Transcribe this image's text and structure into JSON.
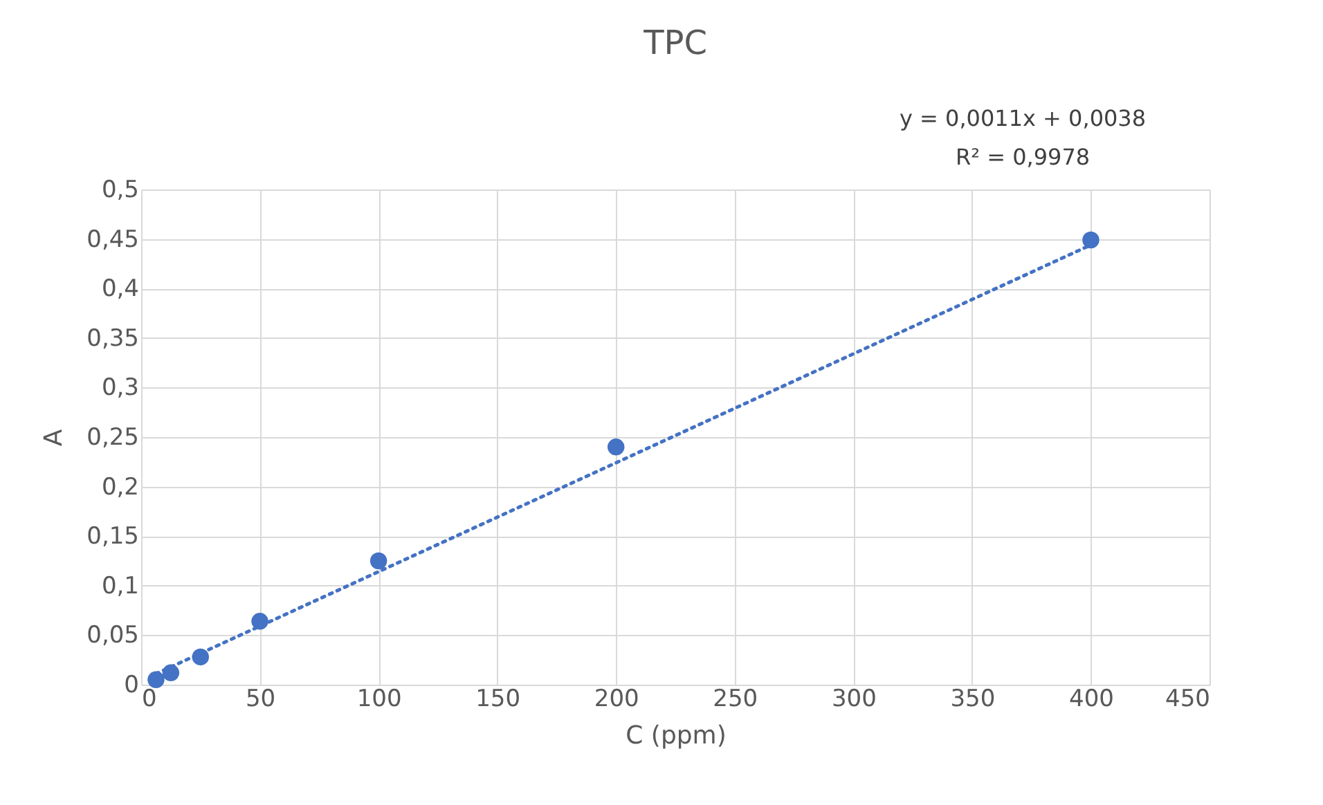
{
  "chart_data": {
    "type": "scatter",
    "title": "TPC",
    "xlabel": "C (ppm)",
    "ylabel": "A",
    "x": [
      6.25,
      12.5,
      25,
      50,
      100,
      200,
      400
    ],
    "series": [
      {
        "type": "scatter",
        "color": "#4472c4",
        "marker": "circle",
        "values": [
          0.005,
          0.012,
          0.028,
          0.064,
          0.125,
          0.24,
          0.449
        ]
      },
      {
        "type": "line",
        "color": "#4472c4",
        "line_style": "dotted",
        "marker": "none",
        "x": [
          6.25,
          400
        ],
        "values": [
          0.011,
          0.444
        ]
      }
    ],
    "annotations": [
      "y = 0,0011x + 0,0038",
      "R² = 0,9978"
    ],
    "xlim": [
      0,
      450
    ],
    "xticks": [
      0,
      50,
      100,
      150,
      200,
      250,
      300,
      350,
      400,
      450
    ],
    "ylim": [
      0,
      0.5
    ],
    "yticks": [
      0,
      {
        "value": 0.05,
        "label": "0,05"
      },
      {
        "value": 0.1,
        "label": "0,1"
      },
      {
        "value": 0.15,
        "label": "0,15"
      },
      {
        "value": 0.2,
        "label": "0,2"
      },
      {
        "value": 0.25,
        "label": "0,25"
      },
      {
        "value": 0.3,
        "label": "0,3"
      },
      {
        "value": 0.35,
        "label": "0,35"
      },
      {
        "value": 0.4,
        "label": "0,4"
      },
      {
        "value": 0.45,
        "label": "0,45"
      },
      {
        "value": 0.5,
        "label": "0,5"
      }
    ],
    "grid": true
  }
}
